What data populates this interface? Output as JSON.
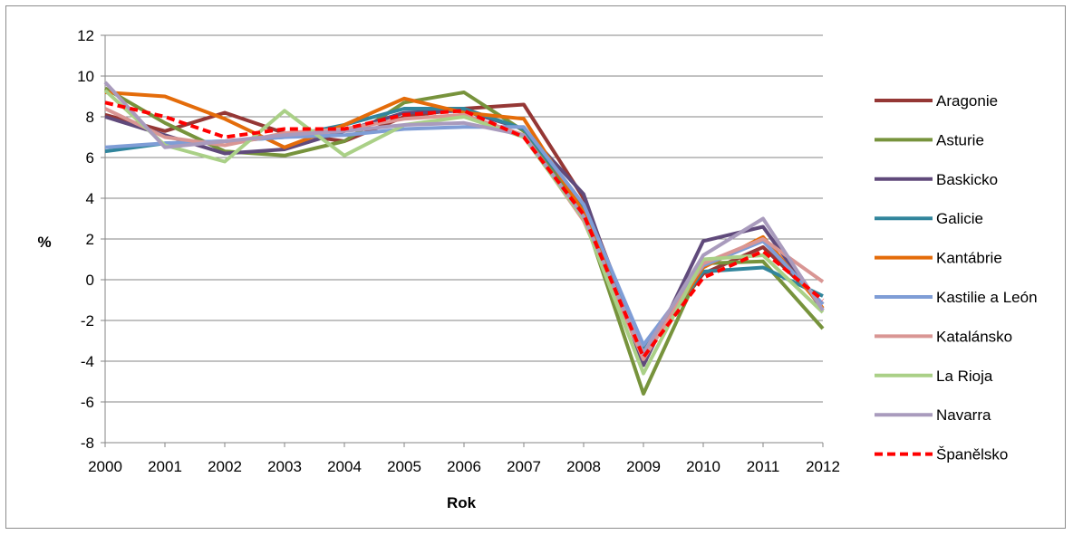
{
  "chart_data": {
    "type": "line",
    "title": "",
    "xlabel": "Rok",
    "ylabel": "%",
    "ylim": [
      -8,
      12
    ],
    "yticks": [
      -8,
      -6,
      -4,
      -2,
      0,
      2,
      4,
      6,
      8,
      10,
      12
    ],
    "grid": "horizontal",
    "legend_position": "right",
    "categories": [
      "2000",
      "2001",
      "2002",
      "2003",
      "2004",
      "2005",
      "2006",
      "2007",
      "2008",
      "2009",
      "2010",
      "2011",
      "2012"
    ],
    "series": [
      {
        "name": "Aragonie",
        "color": "#953735",
        "dashed": false,
        "values": [
          8.1,
          7.3,
          8.2,
          7.2,
          6.8,
          8.0,
          8.4,
          8.6,
          4.0,
          -3.6,
          0.3,
          1.6,
          -1.2
        ]
      },
      {
        "name": "Asturie",
        "color": "#77933c",
        "dashed": false,
        "values": [
          9.4,
          7.7,
          6.3,
          6.1,
          6.8,
          8.7,
          9.2,
          7.3,
          3.2,
          -5.6,
          0.8,
          0.9,
          -2.4
        ]
      },
      {
        "name": "Baskicko",
        "color": "#604a7b",
        "dashed": false,
        "values": [
          8.0,
          7.1,
          6.2,
          6.4,
          7.3,
          8.2,
          8.3,
          7.4,
          4.2,
          -4.2,
          1.9,
          2.6,
          -1.5
        ]
      },
      {
        "name": "Galicie",
        "color": "#31859c",
        "dashed": false,
        "values": [
          6.3,
          6.7,
          6.8,
          7.0,
          7.6,
          8.4,
          8.4,
          7.4,
          3.6,
          -3.4,
          0.4,
          0.6,
          -0.8
        ]
      },
      {
        "name": "Kantábrie",
        "color": "#e46c0a",
        "dashed": false,
        "values": [
          9.2,
          9.0,
          7.9,
          6.5,
          7.6,
          8.9,
          8.2,
          7.9,
          3.3,
          -3.8,
          0.6,
          2.1,
          -1.4
        ]
      },
      {
        "name": "Kastilie a León",
        "color": "#7f9dd6",
        "dashed": false,
        "values": [
          6.5,
          6.7,
          6.8,
          7.0,
          7.1,
          7.4,
          7.5,
          7.5,
          3.7,
          -3.2,
          0.7,
          1.9,
          -1.2
        ]
      },
      {
        "name": "Katalánsko",
        "color": "#d99694",
        "dashed": false,
        "values": [
          8.4,
          7.0,
          6.6,
          7.2,
          7.4,
          7.9,
          8.1,
          7.1,
          2.9,
          -3.9,
          0.8,
          2.0,
          -0.1
        ]
      },
      {
        "name": "La Rioja",
        "color": "#aad087",
        "dashed": false,
        "values": [
          9.3,
          6.6,
          5.8,
          8.3,
          6.1,
          7.6,
          8.0,
          7.0,
          3.0,
          -4.6,
          1.0,
          1.2,
          -1.6
        ]
      },
      {
        "name": "Navarra",
        "color": "#a99bbd",
        "dashed": false,
        "values": [
          9.7,
          6.5,
          6.8,
          7.1,
          7.3,
          7.6,
          7.7,
          7.1,
          3.1,
          -3.6,
          1.2,
          3.0,
          -1.5
        ]
      },
      {
        "name": "Španělsko",
        "color": "#ff0000",
        "dashed": true,
        "values": [
          8.7,
          8.0,
          7.0,
          7.4,
          7.4,
          8.1,
          8.3,
          7.0,
          3.2,
          -3.8,
          0.1,
          1.4,
          -1.0
        ]
      }
    ]
  }
}
